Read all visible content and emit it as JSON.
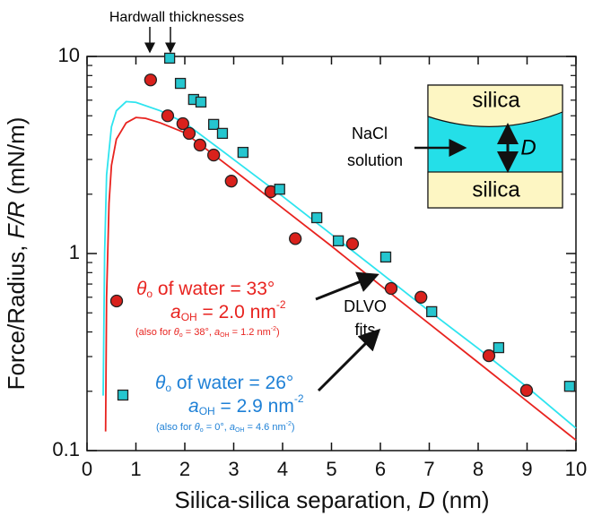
{
  "chart_data": {
    "type": "scatter",
    "annotations": {
      "hardwall": "Hardwall thicknesses",
      "red_label": {
        "line1": [
          "θ",
          "o",
          " of water = 33°"
        ],
        "line2": [
          "a",
          "OH",
          " = 2.0 nm",
          "-2"
        ],
        "line3": [
          "(also for ",
          "θ",
          "o",
          " = 38°, ",
          "a",
          "OH",
          " = 1.2 nm",
          "-2",
          ")"
        ]
      },
      "blue_label": {
        "line1": [
          "θ",
          "o",
          " of water = 26°"
        ],
        "line2": [
          "a",
          "OH",
          " = 2.9 nm",
          "-2"
        ],
        "line3": [
          "(also for ",
          "θ",
          "o",
          " = 0°, ",
          "a",
          "OH",
          " = 4.6 nm",
          "-2",
          ")"
        ]
      },
      "fits": [
        "DLVO",
        "fits"
      ],
      "inset": {
        "top": "silica",
        "middle": [
          "NaCl",
          "solution"
        ],
        "gap": "D",
        "bottom": "silica"
      }
    },
    "xlabel": [
      "Silica-silica separation, ",
      "D",
      " (nm)"
    ],
    "ylabel": [
      "Force/Radius, ",
      "F/R",
      " (mN/m)"
    ],
    "xlim": [
      0,
      10
    ],
    "ylim": [
      0.1,
      10
    ],
    "yscale": "log",
    "xticks": [
      0,
      1,
      2,
      3,
      4,
      5,
      6,
      7,
      8,
      9,
      10
    ],
    "yticks": [
      0.1,
      1,
      10
    ],
    "yminorticks": [
      0.2,
      0.3,
      0.4,
      0.5,
      0.6,
      0.7,
      0.8,
      0.9,
      2,
      3,
      4,
      5,
      6,
      7,
      8,
      9
    ],
    "series": [
      {
        "type": "scatter",
        "marker": "circle",
        "color": "#d9211c",
        "x": [
          1.3,
          1.65,
          1.96,
          2.09,
          2.31,
          2.59,
          2.95,
          3.76,
          4.26,
          5.43,
          6.22,
          6.83,
          8.22,
          8.99
        ],
        "values": [
          7.6,
          5.0,
          4.56,
          4.07,
          3.55,
          3.16,
          2.33,
          2.06,
          1.19,
          1.12,
          0.665,
          0.6,
          0.303,
          0.202
        ]
      },
      {
        "type": "scatter",
        "marker": "square",
        "color": "#25c6cf",
        "x": [
          1.69,
          1.91,
          2.18,
          2.33,
          2.59,
          2.77,
          3.19,
          3.94,
          4.7,
          5.14,
          6.11,
          7.05,
          8.42,
          9.87
        ],
        "values": [
          9.8,
          7.3,
          6.05,
          5.87,
          4.52,
          4.07,
          3.26,
          2.12,
          1.52,
          1.16,
          0.96,
          0.507,
          0.333,
          0.212
        ]
      },
      {
        "type": "line",
        "color": "#e8231f",
        "x": [
          0.38,
          0.4,
          0.45,
          0.5,
          0.6,
          0.8,
          1.0,
          1.2,
          1.5,
          2,
          3,
          4,
          5,
          6,
          7,
          8,
          9,
          10
        ],
        "values": [
          0.125,
          0.6,
          1.8,
          2.8,
          3.8,
          4.6,
          4.9,
          4.85,
          4.6,
          4.1,
          2.65,
          1.7,
          1.09,
          0.69,
          0.44,
          0.28,
          0.178,
          0.113
        ]
      },
      {
        "type": "line",
        "color": "#2ee4ef",
        "x": [
          0.33,
          0.36,
          0.4,
          0.5,
          0.6,
          0.8,
          1.0,
          1.5,
          2,
          3,
          4,
          5,
          6,
          7,
          8,
          9,
          10
        ],
        "values": [
          0.19,
          1.0,
          2.5,
          4.4,
          5.3,
          5.9,
          5.85,
          5.3,
          4.6,
          3.0,
          1.95,
          1.25,
          0.8,
          0.51,
          0.33,
          0.21,
          0.13
        ]
      }
    ]
  }
}
